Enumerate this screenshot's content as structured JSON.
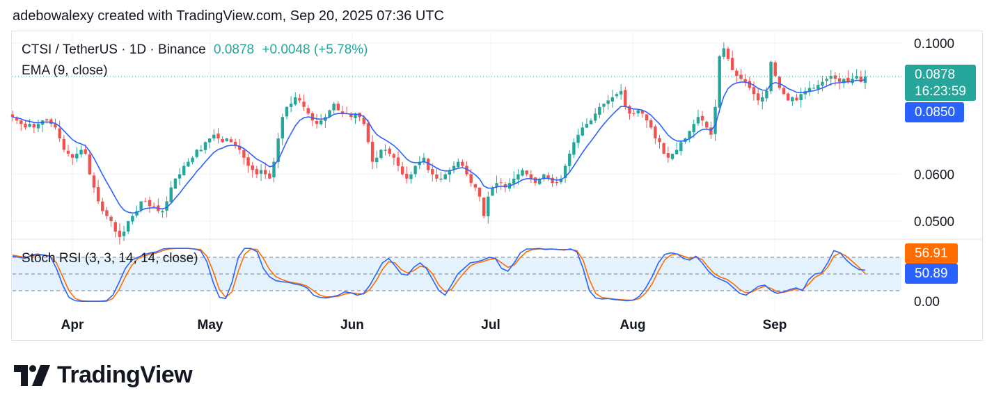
{
  "attribution": "adebowalexy created with TradingView.com, Sep 20, 2025 07:36 UTC",
  "legend": {
    "symbol": "CTSI / TetherUS · 1D · Binance",
    "price": "0.0878",
    "change": "+0.0048 (+5.78%)",
    "ema": "EMA (9, close)",
    "stoch": "Stoch RSI (3, 3, 14, 14, close)"
  },
  "price_tags": {
    "last": "0.0878",
    "countdown": "16:23:59",
    "ema": "0.0850"
  },
  "stoch_tags": {
    "k": "56.91",
    "d": "50.89"
  },
  "brand": "TradingView",
  "colors": {
    "up": "#26a69a",
    "down": "#ef5350",
    "ema": "#2962ff",
    "stoch_k": "#2962ff",
    "stoch_d": "#ff6d00",
    "band": "#e3f2fd"
  },
  "chart_data": [
    {
      "type": "candlestick",
      "title": "CTSI / TetherUS · 1D · Binance",
      "y_scale": "log",
      "y_ticks": [
        "0.1000",
        "0.0600",
        "0.0500"
      ],
      "x_ticks": [
        "Apr",
        "May",
        "Jun",
        "Jul",
        "Aug",
        "Sep"
      ],
      "close_series": [
        0.075,
        0.074,
        0.073,
        0.072,
        0.073,
        0.072,
        0.073,
        0.074,
        0.074,
        0.073,
        0.072,
        0.069,
        0.066,
        0.065,
        0.064,
        0.065,
        0.066,
        0.065,
        0.06,
        0.057,
        0.054,
        0.052,
        0.051,
        0.05,
        0.048,
        0.047,
        0.048,
        0.05,
        0.051,
        0.052,
        0.054,
        0.054,
        0.053,
        0.053,
        0.052,
        0.052,
        0.054,
        0.057,
        0.059,
        0.06,
        0.062,
        0.063,
        0.064,
        0.066,
        0.066,
        0.068,
        0.069,
        0.07,
        0.069,
        0.068,
        0.069,
        0.068,
        0.067,
        0.066,
        0.064,
        0.062,
        0.061,
        0.06,
        0.061,
        0.06,
        0.059,
        0.063,
        0.069,
        0.075,
        0.078,
        0.079,
        0.081,
        0.08,
        0.078,
        0.076,
        0.074,
        0.073,
        0.074,
        0.075,
        0.077,
        0.079,
        0.077,
        0.076,
        0.076,
        0.075,
        0.076,
        0.075,
        0.073,
        0.068,
        0.063,
        0.064,
        0.066,
        0.066,
        0.065,
        0.064,
        0.062,
        0.06,
        0.059,
        0.06,
        0.062,
        0.063,
        0.064,
        0.061,
        0.06,
        0.059,
        0.059,
        0.06,
        0.061,
        0.062,
        0.063,
        0.062,
        0.06,
        0.058,
        0.057,
        0.055,
        0.051,
        0.055,
        0.057,
        0.058,
        0.058,
        0.057,
        0.058,
        0.059,
        0.06,
        0.061,
        0.06,
        0.059,
        0.058,
        0.059,
        0.06,
        0.059,
        0.058,
        0.058,
        0.059,
        0.062,
        0.065,
        0.068,
        0.07,
        0.072,
        0.073,
        0.074,
        0.076,
        0.078,
        0.079,
        0.08,
        0.081,
        0.082,
        0.083,
        0.078,
        0.076,
        0.076,
        0.077,
        0.076,
        0.074,
        0.072,
        0.069,
        0.068,
        0.065,
        0.064,
        0.065,
        0.066,
        0.068,
        0.069,
        0.071,
        0.073,
        0.075,
        0.074,
        0.072,
        0.07,
        0.078,
        0.095,
        0.098,
        0.094,
        0.09,
        0.088,
        0.087,
        0.086,
        0.084,
        0.082,
        0.08,
        0.081,
        0.083,
        0.093,
        0.088,
        0.084,
        0.082,
        0.08,
        0.081,
        0.08,
        0.082,
        0.083,
        0.084,
        0.084,
        0.085,
        0.086,
        0.087,
        0.088,
        0.087,
        0.086,
        0.087,
        0.086,
        0.087,
        0.088,
        0.086,
        0.0878
      ],
      "series": [
        {
          "name": "EMA (9, close)",
          "value_now": 0.085
        }
      ]
    },
    {
      "type": "line",
      "title": "Stoch RSI (3, 3, 14, 14, close)",
      "ylim": [
        0,
        100
      ],
      "y_ticks": [
        "0.00"
      ],
      "bands": [
        80,
        50,
        20
      ],
      "k_series": [
        82,
        80,
        78,
        84,
        86,
        84,
        82,
        60,
        30,
        8,
        2,
        1,
        1,
        1,
        1,
        2,
        12,
        35,
        60,
        75,
        80,
        85,
        88,
        90,
        95,
        96,
        96,
        96,
        96,
        95,
        92,
        72,
        35,
        8,
        6,
        35,
        80,
        96,
        96,
        90,
        60,
        45,
        38,
        36,
        35,
        32,
        30,
        25,
        12,
        8,
        7,
        9,
        12,
        18,
        16,
        12,
        15,
        30,
        50,
        70,
        78,
        65,
        50,
        48,
        62,
        70,
        60,
        40,
        20,
        12,
        30,
        50,
        60,
        70,
        72,
        75,
        80,
        78,
        60,
        55,
        70,
        88,
        95,
        95,
        96,
        94,
        95,
        94,
        93,
        95,
        90,
        60,
        20,
        7,
        5,
        6,
        4,
        3,
        2,
        3,
        10,
        25,
        45,
        70,
        85,
        88,
        86,
        78,
        75,
        82,
        70,
        55,
        45,
        40,
        35,
        25,
        15,
        12,
        20,
        28,
        30,
        20,
        15,
        18,
        22,
        25,
        20,
        40,
        50,
        52,
        70,
        92,
        88,
        75,
        65,
        58,
        56.91
      ],
      "d_series": [
        84,
        82,
        80,
        82,
        84,
        84,
        82,
        70,
        45,
        20,
        6,
        2,
        1,
        1,
        1,
        1,
        6,
        22,
        45,
        65,
        78,
        82,
        86,
        88,
        92,
        95,
        96,
        96,
        96,
        95,
        94,
        82,
        55,
        22,
        8,
        18,
        55,
        85,
        95,
        94,
        78,
        58,
        45,
        40,
        36,
        34,
        32,
        28,
        20,
        12,
        9,
        9,
        10,
        14,
        16,
        15,
        14,
        22,
        38,
        58,
        72,
        70,
        58,
        52,
        56,
        64,
        62,
        50,
        30,
        18,
        22,
        38,
        52,
        64,
        70,
        72,
        76,
        78,
        70,
        62,
        66,
        80,
        90,
        94,
        95,
        95,
        95,
        94,
        94,
        94,
        92,
        75,
        40,
        15,
        8,
        6,
        5,
        4,
        3,
        3,
        6,
        16,
        32,
        55,
        75,
        84,
        86,
        82,
        78,
        80,
        76,
        62,
        50,
        44,
        40,
        32,
        22,
        16,
        18,
        24,
        28,
        24,
        18,
        17,
        20,
        23,
        22,
        32,
        44,
        50,
        62,
        82,
        88,
        82,
        72,
        62,
        50.89
      ]
    }
  ]
}
